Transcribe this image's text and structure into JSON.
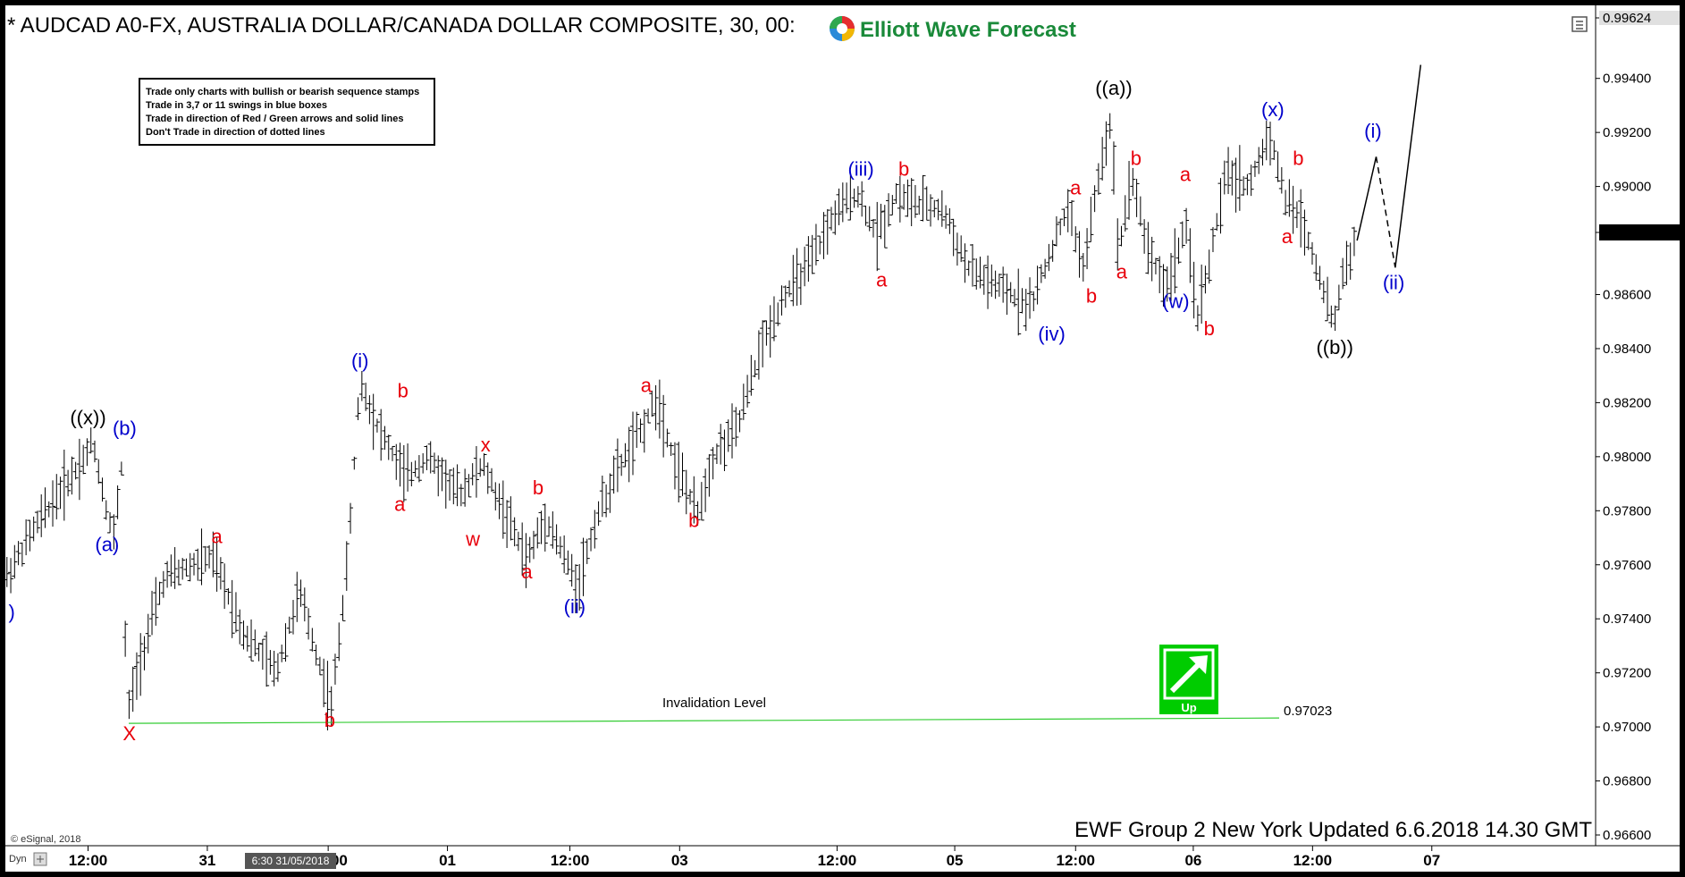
{
  "header": {
    "title": "* AUDCAD A0-FX, AUSTRALIA DOLLAR/CANADA DOLLAR COMPOSITE, 30, 00:",
    "brand": "Elliott Wave Forecast"
  },
  "rules": [
    "Trade only charts with bullish or bearish sequence stamps",
    "Trade in 3,7 or 11 swings in blue boxes",
    "Trade in direction of Red / Green arrows and solid lines",
    "Don't Trade in direction of dotted lines"
  ],
  "footer": {
    "updated": "EWF Group 2 New York Updated 6.6.2018 14.30 GMT",
    "copyright": "© eSignal, 2018",
    "dyn": "Dyn",
    "cursor_time": "6:30 31/05/2018"
  },
  "invalidation": {
    "label": "Invalidation Level",
    "value": "0.97023"
  },
  "up_stamp": {
    "label": "Up",
    "color": "#00cc00"
  },
  "colors": {
    "red": "#e8000b",
    "blue": "#0000cc",
    "black": "#000000",
    "invalidation_line": "#33cc33"
  },
  "chart_data": {
    "type": "line",
    "title": "* AUDCAD A0-FX, AUSTRALIA DOLLAR/CANADA DOLLAR COMPOSITE, 30, 00:",
    "ylim": [
      0.9664,
      0.99624
    ],
    "y_ticks": [
      0.99624,
      0.994,
      0.992,
      0.99,
      0.9883,
      0.986,
      0.984,
      0.982,
      0.98,
      0.978,
      0.976,
      0.974,
      0.972,
      0.97,
      0.968,
      0.966
    ],
    "y_tick_labels": [
      "0.99624",
      "0.99400",
      "0.99200",
      "0.99000",
      "0.98830",
      "0.98600",
      "0.98400",
      "0.98200",
      "0.98000",
      "0.97800",
      "0.97600",
      "0.97400",
      "0.97200",
      "0.97000",
      "0.96800",
      "0.96600"
    ],
    "last_price": "0.98830",
    "x_ticks": [
      "12:00",
      "31",
      "12:00",
      "01",
      "12:00",
      "03",
      "12:00",
      "05",
      "12:00",
      "06",
      "12:00",
      "07"
    ],
    "x_tick_positions": [
      0.052,
      0.127,
      0.203,
      0.278,
      0.355,
      0.424,
      0.523,
      0.597,
      0.673,
      0.747,
      0.822,
      0.897
    ],
    "price_path": [
      [
        0.0,
        0.9755
      ],
      [
        0.02,
        0.9775
      ],
      [
        0.05,
        0.98
      ],
      [
        0.055,
        0.9806
      ],
      [
        0.062,
        0.9785
      ],
      [
        0.068,
        0.977
      ],
      [
        0.074,
        0.9801
      ],
      [
        0.076,
        0.9703
      ],
      [
        0.085,
        0.9725
      ],
      [
        0.1,
        0.9755
      ],
      [
        0.13,
        0.9763
      ],
      [
        0.15,
        0.9735
      ],
      [
        0.17,
        0.972
      ],
      [
        0.185,
        0.975
      ],
      [
        0.205,
        0.9707
      ],
      [
        0.215,
        0.976
      ],
      [
        0.223,
        0.9828
      ],
      [
        0.235,
        0.981
      ],
      [
        0.252,
        0.9792
      ],
      [
        0.265,
        0.98
      ],
      [
        0.285,
        0.9786
      ],
      [
        0.3,
        0.9797
      ],
      [
        0.315,
        0.9778
      ],
      [
        0.328,
        0.9762
      ],
      [
        0.34,
        0.9778
      ],
      [
        0.352,
        0.9762
      ],
      [
        0.36,
        0.9752
      ],
      [
        0.372,
        0.9778
      ],
      [
        0.385,
        0.9795
      ],
      [
        0.4,
        0.981
      ],
      [
        0.41,
        0.9822
      ],
      [
        0.42,
        0.98
      ],
      [
        0.435,
        0.9778
      ],
      [
        0.445,
        0.98
      ],
      [
        0.46,
        0.981
      ],
      [
        0.475,
        0.984
      ],
      [
        0.49,
        0.986
      ],
      [
        0.505,
        0.987
      ],
      [
        0.52,
        0.9888
      ],
      [
        0.535,
        0.9898
      ],
      [
        0.548,
        0.9882
      ],
      [
        0.56,
        0.9897
      ],
      [
        0.575,
        0.9893
      ],
      [
        0.59,
        0.9891
      ],
      [
        0.605,
        0.987
      ],
      [
        0.625,
        0.9862
      ],
      [
        0.645,
        0.9856
      ],
      [
        0.655,
        0.9872
      ],
      [
        0.668,
        0.9892
      ],
      [
        0.678,
        0.987
      ],
      [
        0.688,
        0.9905
      ],
      [
        0.695,
        0.9925
      ],
      [
        0.7,
        0.9875
      ],
      [
        0.708,
        0.9905
      ],
      [
        0.718,
        0.9878
      ],
      [
        0.73,
        0.9862
      ],
      [
        0.742,
        0.9885
      ],
      [
        0.75,
        0.9852
      ],
      [
        0.758,
        0.9875
      ],
      [
        0.768,
        0.9905
      ],
      [
        0.782,
        0.99
      ],
      [
        0.795,
        0.992
      ],
      [
        0.805,
        0.9895
      ],
      [
        0.815,
        0.9888
      ],
      [
        0.825,
        0.987
      ],
      [
        0.835,
        0.9848
      ],
      [
        0.842,
        0.987
      ],
      [
        0.85,
        0.988
      ]
    ],
    "projection": [
      [
        0.85,
        0.988
      ],
      [
        0.862,
        0.9911
      ],
      [
        0.874,
        0.987
      ],
      [
        0.89,
        0.9945
      ]
    ],
    "annotations": [
      {
        "text": ")",
        "x": 0.004,
        "y": 0.974,
        "color": "blue"
      },
      {
        "text": "((x))",
        "x": 0.052,
        "y": 0.9812,
        "color": "black"
      },
      {
        "text": "(b)",
        "x": 0.075,
        "y": 0.9808,
        "color": "blue"
      },
      {
        "text": "(a)",
        "x": 0.064,
        "y": 0.9765,
        "color": "blue"
      },
      {
        "text": "X",
        "x": 0.078,
        "y": 0.9695,
        "color": "red"
      },
      {
        "text": "a",
        "x": 0.133,
        "y": 0.9768,
        "color": "red"
      },
      {
        "text": "b",
        "x": 0.204,
        "y": 0.97,
        "color": "red"
      },
      {
        "text": "(i)",
        "x": 0.223,
        "y": 0.9833,
        "color": "blue"
      },
      {
        "text": "b",
        "x": 0.25,
        "y": 0.9822,
        "color": "red"
      },
      {
        "text": "a",
        "x": 0.248,
        "y": 0.978,
        "color": "red"
      },
      {
        "text": "x",
        "x": 0.302,
        "y": 0.9802,
        "color": "red"
      },
      {
        "text": "w",
        "x": 0.294,
        "y": 0.9767,
        "color": "red"
      },
      {
        "text": "b",
        "x": 0.335,
        "y": 0.9786,
        "color": "red"
      },
      {
        "text": "a",
        "x": 0.328,
        "y": 0.9755,
        "color": "red"
      },
      {
        "text": "(ii)",
        "x": 0.358,
        "y": 0.9742,
        "color": "blue"
      },
      {
        "text": "a",
        "x": 0.403,
        "y": 0.9824,
        "color": "red"
      },
      {
        "text": "b",
        "x": 0.433,
        "y": 0.9774,
        "color": "red"
      },
      {
        "text": "(iii)",
        "x": 0.538,
        "y": 0.9904,
        "color": "blue"
      },
      {
        "text": "b",
        "x": 0.565,
        "y": 0.9904,
        "color": "red"
      },
      {
        "text": "a",
        "x": 0.551,
        "y": 0.9863,
        "color": "red"
      },
      {
        "text": "(iv)",
        "x": 0.658,
        "y": 0.9843,
        "color": "blue"
      },
      {
        "text": "a",
        "x": 0.673,
        "y": 0.9897,
        "color": "red"
      },
      {
        "text": "b",
        "x": 0.683,
        "y": 0.9857,
        "color": "red"
      },
      {
        "text": "((a))",
        "x": 0.697,
        "y": 0.9934,
        "color": "black"
      },
      {
        "text": "a",
        "x": 0.702,
        "y": 0.9866,
        "color": "red"
      },
      {
        "text": "b",
        "x": 0.711,
        "y": 0.9908,
        "color": "red"
      },
      {
        "text": "(w)",
        "x": 0.736,
        "y": 0.9855,
        "color": "blue"
      },
      {
        "text": "a",
        "x": 0.742,
        "y": 0.9902,
        "color": "red"
      },
      {
        "text": "b",
        "x": 0.757,
        "y": 0.9845,
        "color": "red"
      },
      {
        "text": "(x)",
        "x": 0.797,
        "y": 0.9926,
        "color": "blue"
      },
      {
        "text": "b",
        "x": 0.813,
        "y": 0.9908,
        "color": "red"
      },
      {
        "text": "a",
        "x": 0.806,
        "y": 0.9879,
        "color": "red"
      },
      {
        "text": "((b))",
        "x": 0.836,
        "y": 0.9838,
        "color": "black"
      },
      {
        "text": "(i)",
        "x": 0.86,
        "y": 0.9918,
        "color": "blue"
      },
      {
        "text": "(ii)",
        "x": 0.873,
        "y": 0.9862,
        "color": "blue"
      }
    ]
  }
}
